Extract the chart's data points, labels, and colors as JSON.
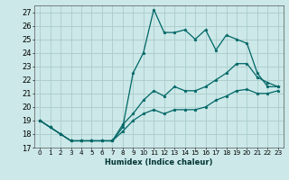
{
  "xlabel": "Humidex (Indice chaleur)",
  "bg_color": "#cce8e8",
  "grid_color": "#aacccc",
  "line_color": "#006666",
  "x_values": [
    0,
    1,
    2,
    3,
    4,
    5,
    6,
    7,
    8,
    9,
    10,
    11,
    12,
    13,
    14,
    15,
    16,
    17,
    18,
    19,
    20,
    21,
    22,
    23
  ],
  "line_jagged": [
    19,
    18.5,
    18,
    17.5,
    17.5,
    17.5,
    17.5,
    17.5,
    18.5,
    22.5,
    24,
    27.2,
    25.5,
    25.5,
    25.7,
    25,
    25.7,
    24.2,
    25.3,
    25,
    24.7,
    22.5,
    21.5,
    21.5
  ],
  "line_mid": [
    19,
    18.5,
    18,
    17.5,
    17.5,
    17.5,
    17.5,
    17.5,
    18.7,
    19.5,
    20.5,
    21.2,
    20.8,
    21.5,
    21.2,
    21.2,
    21.5,
    22.0,
    22.5,
    23.2,
    23.2,
    22.2,
    21.8,
    21.5
  ],
  "line_low": [
    19,
    18.5,
    18,
    17.5,
    17.5,
    17.5,
    17.5,
    17.5,
    18.2,
    19.0,
    19.5,
    19.8,
    19.5,
    19.8,
    19.8,
    19.8,
    20.0,
    20.5,
    20.8,
    21.2,
    21.3,
    21.0,
    21.0,
    21.2
  ],
  "ylim_min": 17,
  "ylim_max": 27.5,
  "xlim_min": -0.5,
  "xlim_max": 23.5,
  "yticks": [
    17,
    18,
    19,
    20,
    21,
    22,
    23,
    24,
    25,
    26,
    27
  ],
  "xticks": [
    0,
    1,
    2,
    3,
    4,
    5,
    6,
    7,
    8,
    9,
    10,
    11,
    12,
    13,
    14,
    15,
    16,
    17,
    18,
    19,
    20,
    21,
    22,
    23
  ]
}
